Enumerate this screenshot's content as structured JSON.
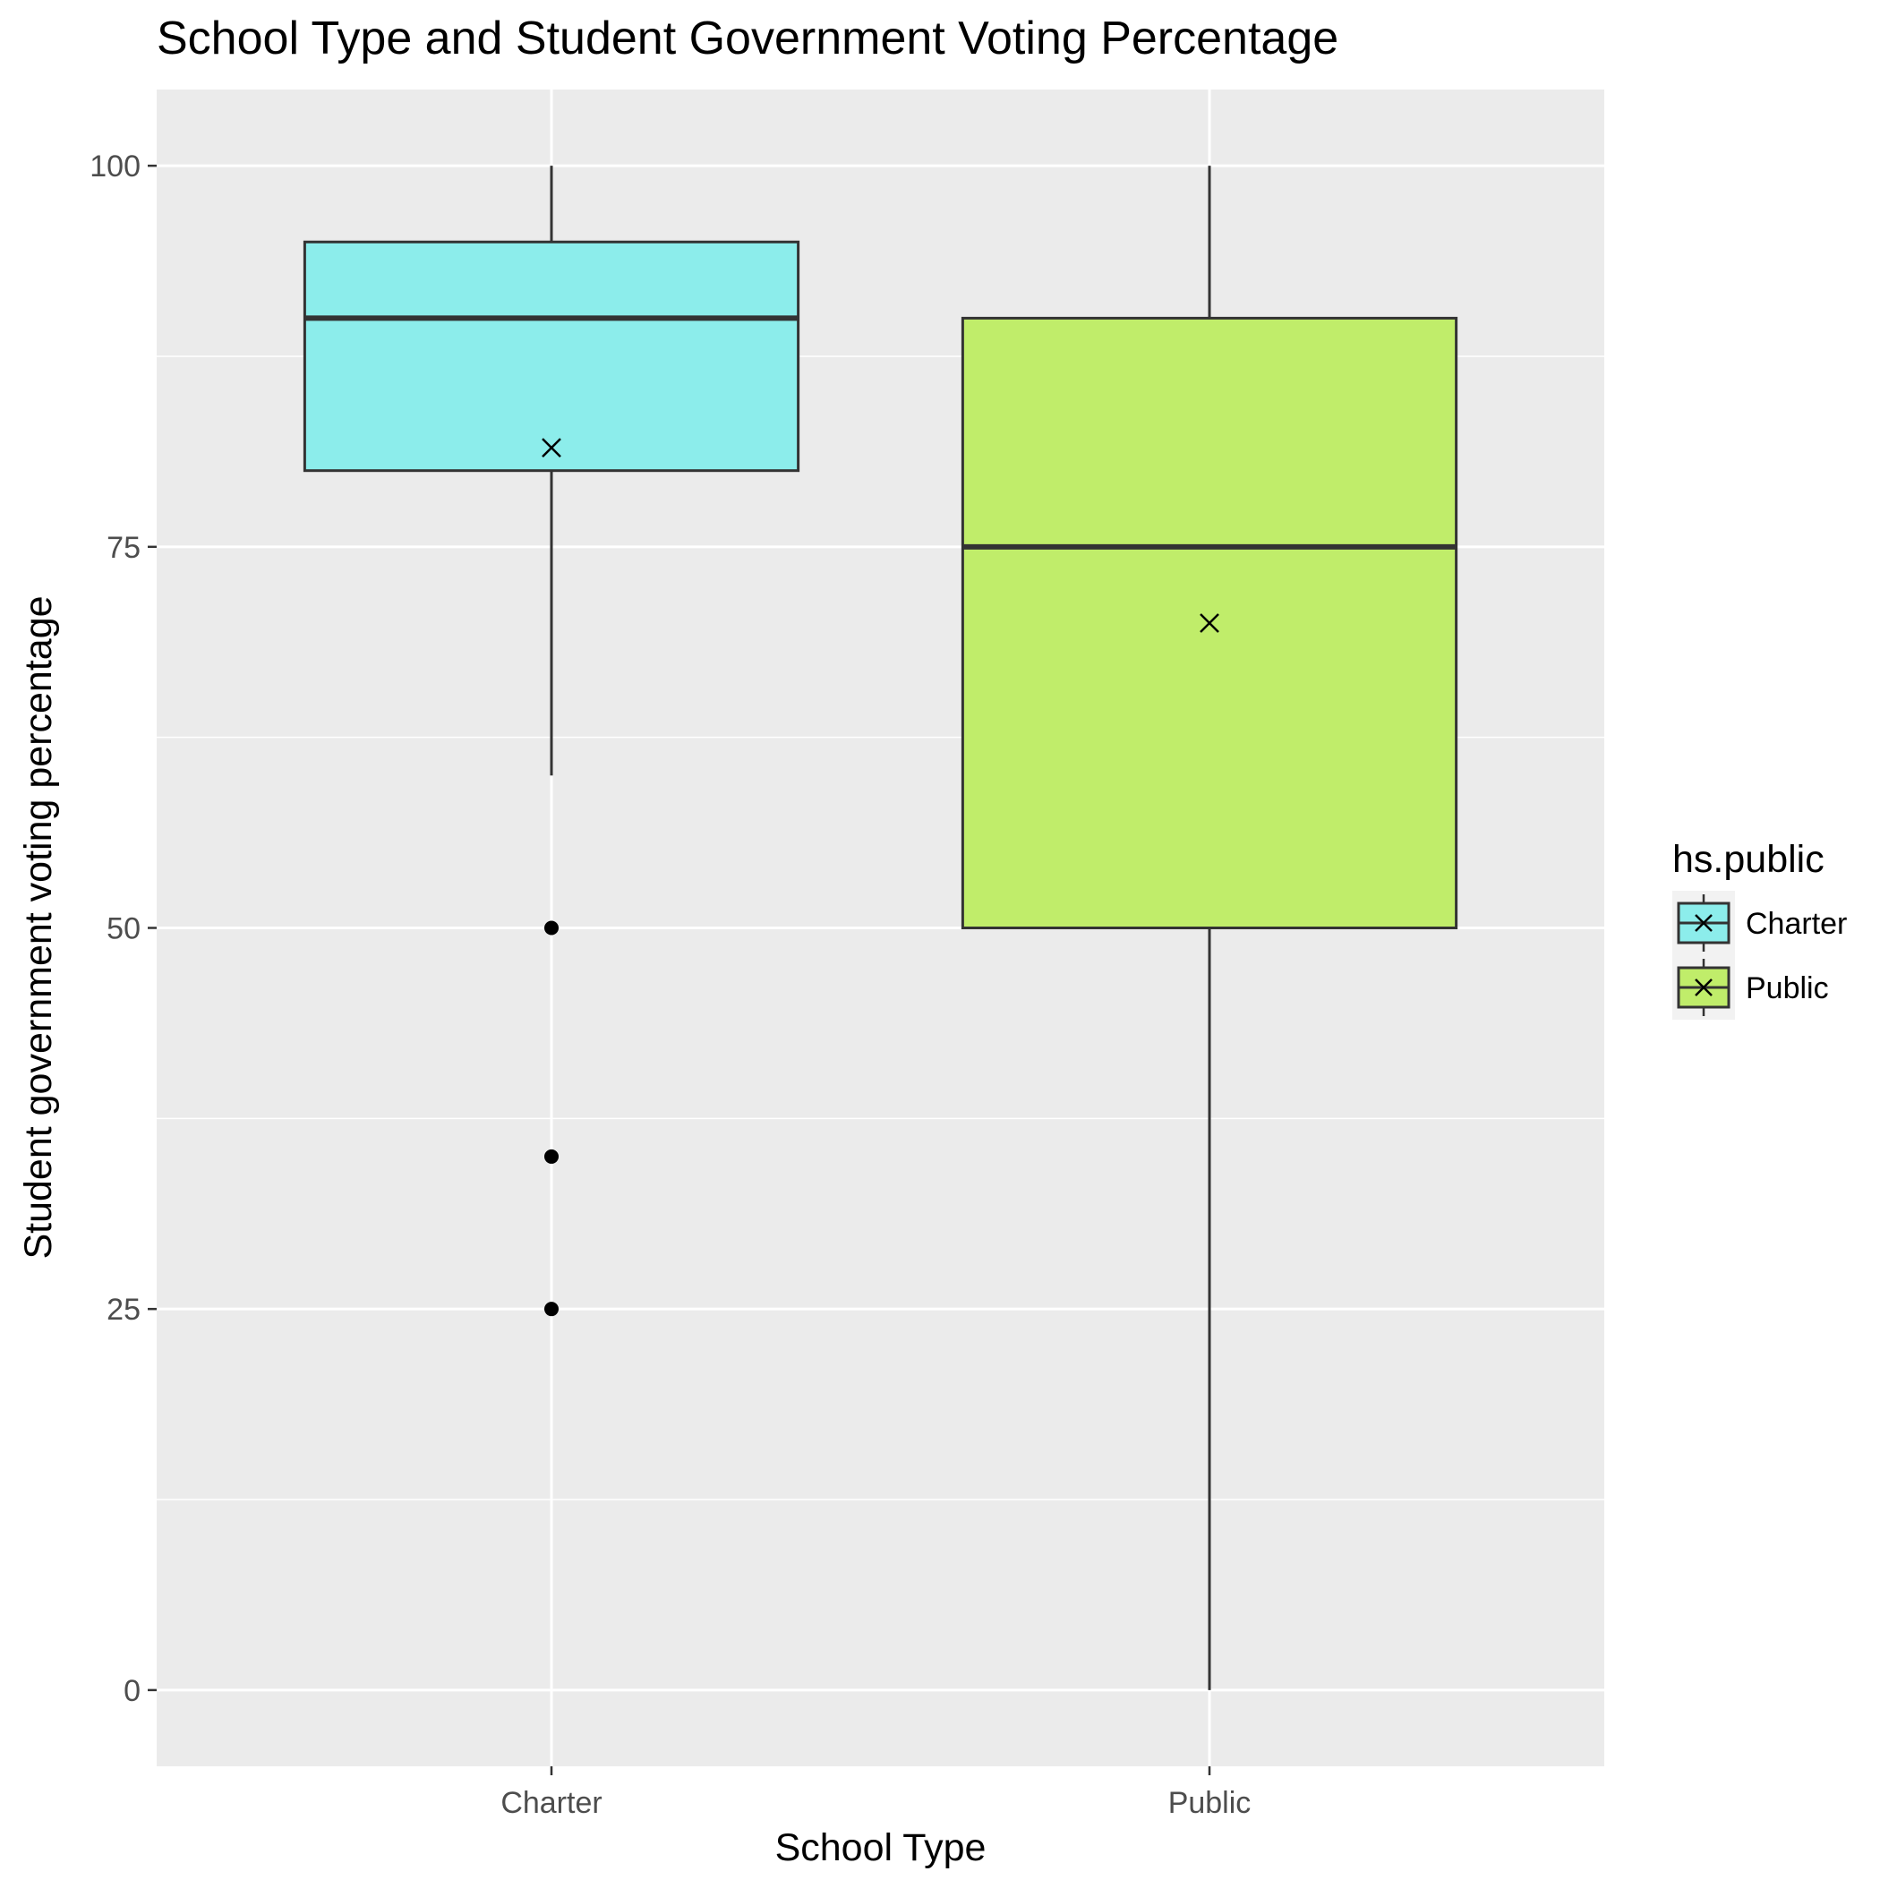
{
  "chart_data": {
    "type": "box",
    "title": "School Type and Student Government Voting Percentage",
    "xlabel": "School Type",
    "ylabel": "Student government voting percentage",
    "categories": [
      "Charter",
      "Public"
    ],
    "ylim": [
      -5,
      105
    ],
    "yticks": [
      0,
      25,
      50,
      75,
      100
    ],
    "grid": true,
    "legend": {
      "title": "hs.public",
      "position": "right",
      "entries": [
        "Charter",
        "Public"
      ]
    },
    "boxes": [
      {
        "category": "Charter",
        "whisker_low": 60,
        "q1": 80,
        "median": 90,
        "q3": 95,
        "whisker_high": 100,
        "mean": 81.5,
        "outliers": [
          50,
          35,
          25
        ],
        "color": "#8cedeb"
      },
      {
        "category": "Public",
        "whisker_low": 0,
        "q1": 50,
        "median": 75,
        "q3": 90,
        "whisker_high": 100,
        "mean": 70,
        "outliers": [],
        "color": "#c0ed6a"
      }
    ]
  }
}
